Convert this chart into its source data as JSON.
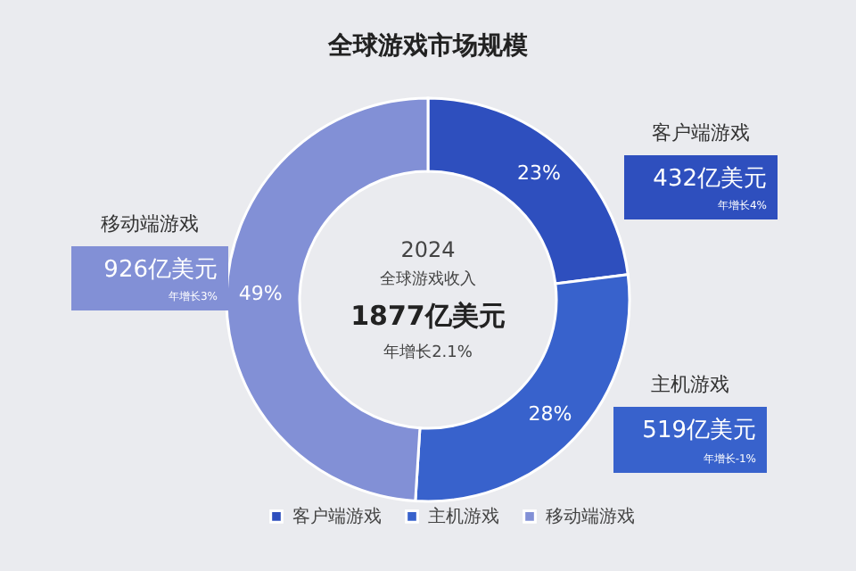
{
  "chart_data": {
    "type": "donut",
    "title": "全球游戏市场规模",
    "categories": [
      "客户端游戏",
      "主机游戏",
      "移动端游戏"
    ],
    "values": [
      23,
      28,
      49
    ],
    "colors": [
      "#2e4fbe",
      "#3862cc",
      "#8290d6"
    ],
    "value_labels": [
      "23%",
      "28%",
      "49%"
    ],
    "legend": "bottom",
    "annotations": [
      "2024",
      "全球游戏收入",
      "1877亿美元",
      "年增长2.1%",
      "客户端游戏",
      "432亿美元",
      "年增长4%",
      "主机游戏",
      "519亿美元",
      "年增长-1%",
      "移动端游戏",
      "926亿美元",
      "年增长3%"
    ]
  }
}
